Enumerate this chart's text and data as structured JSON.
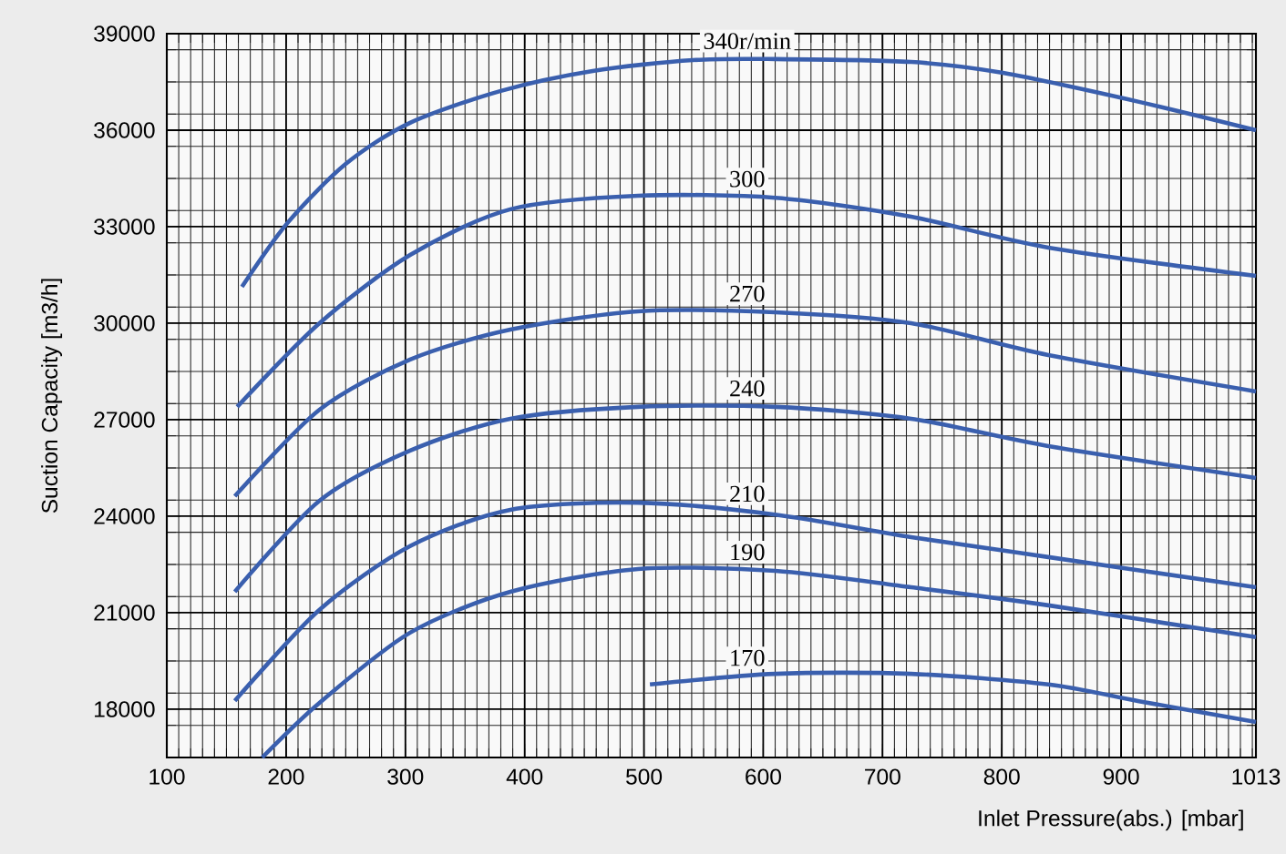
{
  "chart_data": {
    "type": "line",
    "xlabel": "Inlet Pressure(abs.)  [mbar]",
    "ylabel": "Suction Capacity  [m3/h]",
    "xlim": [
      100,
      1013
    ],
    "ylim": [
      16500,
      39000
    ],
    "xticks": [
      100,
      200,
      300,
      400,
      500,
      600,
      700,
      800,
      900,
      1013
    ],
    "yticks": [
      18000,
      21000,
      24000,
      27000,
      30000,
      33000,
      36000,
      39000
    ],
    "grid": true,
    "line_style": "solid",
    "series": [
      {
        "name": "340r/min",
        "color": "#3a5fae",
        "x": [
          163,
          201,
          250,
          304,
          380,
          457,
          541,
          610,
          724,
          801,
          915,
          1013
        ],
        "values": [
          31130,
          33110,
          34950,
          36230,
          37220,
          37840,
          38180,
          38210,
          38120,
          37780,
          36880,
          36000
        ]
      },
      {
        "name": "300",
        "color": "#3a5fae",
        "x": [
          159,
          228,
          304,
          388,
          495,
          610,
          724,
          839,
          1013
        ],
        "values": [
          27400,
          30000,
          32120,
          33540,
          33960,
          33900,
          33310,
          32350,
          31470
        ]
      },
      {
        "name": "270",
        "color": "#3a5fae",
        "x": [
          157,
          228,
          304,
          388,
          495,
          610,
          724,
          839,
          1013
        ],
        "values": [
          24620,
          27310,
          28870,
          29800,
          30370,
          30340,
          30000,
          29010,
          27880
        ]
      },
      {
        "name": "240",
        "color": "#3a5fae",
        "x": [
          157,
          228,
          304,
          388,
          495,
          610,
          724,
          839,
          1013
        ],
        "values": [
          21650,
          24480,
          26040,
          27030,
          27400,
          27400,
          27030,
          26180,
          25190
        ]
      },
      {
        "name": "210",
        "color": "#3a5fae",
        "x": [
          157,
          228,
          304,
          388,
          495,
          610,
          724,
          839,
          1013
        ],
        "values": [
          18260,
          21090,
          23070,
          24200,
          24420,
          24050,
          23350,
          22730,
          21790
        ]
      },
      {
        "name": "190",
        "color": "#3a5fae",
        "x": [
          180,
          228,
          304,
          388,
          495,
          610,
          724,
          839,
          1013
        ],
        "values": [
          16500,
          18200,
          20380,
          21650,
          22360,
          22300,
          21790,
          21230,
          20240
        ]
      },
      {
        "name": "170",
        "color": "#3a5fae",
        "x": [
          505,
          610,
          724,
          839,
          915,
          1013
        ],
        "values": [
          18770,
          19100,
          19100,
          18770,
          18250,
          17600
        ]
      }
    ]
  }
}
